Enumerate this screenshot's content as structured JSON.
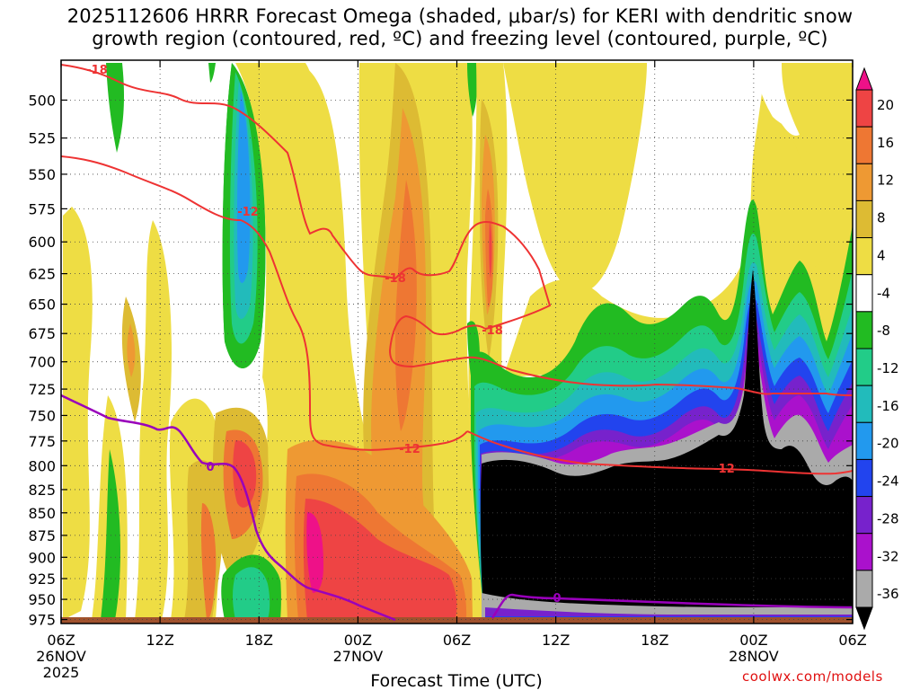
{
  "title": {
    "line1": "2025112606 HRRR Forecast Omega (shaded, μbar/s) for KERI with dendritic snow",
    "line2": "growth region (contoured, red, ºC) and freezing level (contoured, purple, ºC)"
  },
  "credit": "coolwx.com/models",
  "chart_data": {
    "type": "heatmap",
    "title": "2025112606 HRRR Forecast Omega (shaded, μbar/s) for KERI with dendritic snow growth region (contoured, red, ºC) and freezing level (contoured, purple, ºC)",
    "xlabel": "Forecast Time (UTC)",
    "ylabel": "",
    "x_range_hours": [
      0,
      48
    ],
    "y_range_hPa": [
      980,
      475
    ],
    "y_scale": "log-pressure",
    "grid": "dotted",
    "yticks": [
      "500",
      "525",
      "550",
      "575",
      "600",
      "625",
      "650",
      "675",
      "700",
      "725",
      "750",
      "775",
      "800",
      "825",
      "850",
      "875",
      "900",
      "925",
      "950",
      "975"
    ],
    "xticks": [
      {
        "h": 0,
        "l1": "06Z",
        "l2": "26NOV",
        "l3": "2025"
      },
      {
        "h": 6,
        "l1": "12Z",
        "l2": "",
        "l3": ""
      },
      {
        "h": 12,
        "l1": "18Z",
        "l2": "",
        "l3": ""
      },
      {
        "h": 18,
        "l1": "00Z",
        "l2": "27NOV",
        "l3": ""
      },
      {
        "h": 24,
        "l1": "06Z",
        "l2": "",
        "l3": ""
      },
      {
        "h": 30,
        "l1": "12Z",
        "l2": "",
        "l3": ""
      },
      {
        "h": 36,
        "l1": "18Z",
        "l2": "",
        "l3": ""
      },
      {
        "h": 42,
        "l1": "00Z",
        "l2": "28NOV",
        "l3": ""
      },
      {
        "h": 48,
        "l1": "06Z",
        "l2": "",
        "l3": ""
      }
    ],
    "colorbar": {
      "labels": [
        "20",
        "16",
        "12",
        "8",
        "4",
        "-4",
        "-8",
        "-12",
        "-16",
        "-20",
        "-24",
        "-28",
        "-32",
        "-36"
      ],
      "colors": [
        "#ee1188",
        "#ee4444",
        "#ee7733",
        "#ee9933",
        "#ddbb33",
        "#eedd44",
        "#ffffff",
        "#22bb22",
        "#22cc88",
        "#22bbbb",
        "#2299ee",
        "#2244ee",
        "#7722cc",
        "#aa11cc",
        "#aaaaaa",
        "#000000"
      ]
    },
    "colors": {
      "terrain": "#a0522d",
      "dgz": "#ee3333",
      "freezing": "#9900bb"
    },
    "omega_features": [
      {
        "name": "lower-west-rising-1",
        "h": [
          1.5,
          3.5
        ],
        "p": [
          625,
          980
        ],
        "value": 6
      },
      {
        "name": "west-sink-streak",
        "h": [
          2.2,
          3.0
        ],
        "p": [
          470,
          600
        ],
        "value": -6
      },
      {
        "name": "mid-rise-1",
        "h": [
          3.7,
          4.3
        ],
        "p": [
          680,
          775
        ],
        "value": 10
      },
      {
        "name": "lower-rise-2",
        "h": [
          5,
          6
        ],
        "p": [
          800,
          975
        ],
        "value": 6
      },
      {
        "name": "west-sink-2",
        "h": [
          7,
          9.5
        ],
        "p": [
          470,
          680
        ],
        "value": -4
      },
      {
        "name": "lower-rise-3",
        "h": [
          8,
          9.5
        ],
        "p": [
          600,
          980
        ],
        "value": 6
      },
      {
        "name": "sink-column",
        "h": [
          9.5,
          12.5
        ],
        "p": [
          480,
          710
        ],
        "value": -14
      },
      {
        "name": "rise-core-1",
        "h": [
          10.5,
          12.5
        ],
        "p": [
          720,
          980
        ],
        "value": 10
      },
      {
        "name": "rise-core-2",
        "h": [
          11.2,
          13
        ],
        "p": [
          780,
          860
        ],
        "value": 16
      },
      {
        "name": "sink-lower",
        "h": [
          9.5,
          12.5
        ],
        "p": [
          900,
          980
        ],
        "value": -8
      },
      {
        "name": "broad-rise",
        "h": [
          13,
          24
        ],
        "p": [
          480,
          980
        ],
        "value": 6
      },
      {
        "name": "rise-mid",
        "h": [
          15,
          22
        ],
        "p": [
          600,
          960
        ],
        "value": 10
      },
      {
        "name": "rise-strong",
        "h": [
          15.5,
          24
        ],
        "p": [
          830,
          975
        ],
        "value": 16
      },
      {
        "name": "rise-max",
        "h": [
          15.5,
          17
        ],
        "p": [
          860,
          940
        ],
        "value": 20
      },
      {
        "name": "sink-major",
        "h": [
          24.5,
          48
        ],
        "p": [
          570,
          980
        ],
        "value": -36
      },
      {
        "name": "rise-spike",
        "h": [
          25.5,
          27
        ],
        "p": [
          480,
          760
        ],
        "value": 12
      },
      {
        "name": "rise-northeast",
        "h": [
          45,
          48
        ],
        "p": [
          470,
          550
        ],
        "value": 6
      }
    ],
    "contours": [
      {
        "label": "-18",
        "type": "dgz"
      },
      {
        "label": "-12",
        "type": "dgz"
      },
      {
        "label": "-18",
        "type": "dgz"
      },
      {
        "label": "-18",
        "type": "dgz"
      },
      {
        "label": "-12",
        "type": "dgz"
      },
      {
        "label": "-12",
        "type": "dgz"
      },
      {
        "label": "0",
        "type": "freezing"
      },
      {
        "label": "0",
        "type": "freezing"
      }
    ]
  }
}
